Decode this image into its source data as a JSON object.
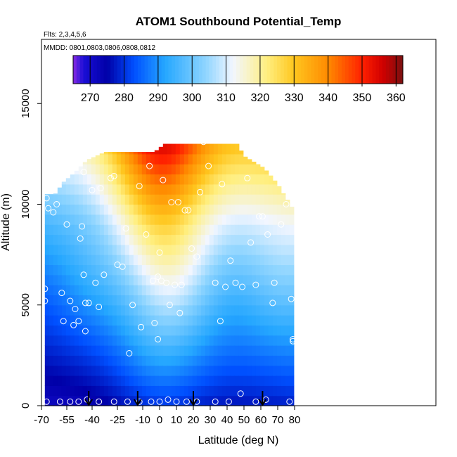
{
  "chart_data": {
    "type": "heatmap",
    "title": "ATOM1 Southbound Potential_Temp",
    "annotations": [
      "Flts: 2,3,4,5,6",
      "MMDD: 0801,0803,0806,0808,0812"
    ],
    "xlabel": "Latitude (deg N)",
    "ylabel": "Altitude (m)",
    "xlim": [
      -70,
      80
    ],
    "ylim": [
      0,
      17500
    ],
    "x_ticks": [
      -70,
      -55,
      -40,
      -25,
      -10,
      0,
      10,
      20,
      30,
      40,
      50,
      60,
      70,
      80
    ],
    "y_ticks": [
      0,
      5000,
      10000,
      15000
    ],
    "colorbar": {
      "placement": "top",
      "range": [
        265,
        362
      ],
      "ticks": [
        270,
        280,
        290,
        300,
        310,
        320,
        330,
        340,
        350,
        360
      ],
      "stops": [
        {
          "value": 265,
          "color": "#8a2be2"
        },
        {
          "value": 268,
          "color": "#1a0ed6"
        },
        {
          "value": 275,
          "color": "#0000a8"
        },
        {
          "value": 283,
          "color": "#0050ff"
        },
        {
          "value": 292,
          "color": "#25a7ff"
        },
        {
          "value": 304,
          "color": "#8fd5ff"
        },
        {
          "value": 312,
          "color": "#f2f6ff"
        },
        {
          "value": 322,
          "color": "#ffef80"
        },
        {
          "value": 330,
          "color": "#ffc61e"
        },
        {
          "value": 340,
          "color": "#ff8a00"
        },
        {
          "value": 350,
          "color": "#ff2000"
        },
        {
          "value": 356,
          "color": "#d10000"
        },
        {
          "value": 362,
          "color": "#7a1010"
        }
      ]
    },
    "profile_column_arrows_lat": [
      -42,
      -13,
      20,
      61
    ],
    "observation_points": [
      [
        -68,
        5800
      ],
      [
        -68,
        5200
      ],
      [
        -67,
        10300
      ],
      [
        -66,
        9800
      ],
      [
        -63,
        9600
      ],
      [
        -61,
        10000
      ],
      [
        -58,
        5600
      ],
      [
        -57,
        4200
      ],
      [
        -55,
        9000
      ],
      [
        -53,
        5200
      ],
      [
        -51,
        4000
      ],
      [
        -50,
        4800
      ],
      [
        -48,
        4200
      ],
      [
        -47,
        8300
      ],
      [
        -46,
        8900
      ],
      [
        -45,
        11600
      ],
      [
        -45,
        6500
      ],
      [
        -44,
        5100
      ],
      [
        -44,
        3700
      ],
      [
        -42,
        5100
      ],
      [
        -40,
        10700
      ],
      [
        -38,
        6100
      ],
      [
        -36,
        4900
      ],
      [
        -35,
        10800
      ],
      [
        -33,
        6500
      ],
      [
        -29,
        11300
      ],
      [
        -27,
        11400
      ],
      [
        -25,
        7000
      ],
      [
        -22,
        6900
      ],
      [
        -20,
        8800
      ],
      [
        -18,
        2600
      ],
      [
        -16,
        5000
      ],
      [
        -12,
        10900
      ],
      [
        -11,
        3900
      ],
      [
        -8,
        8500
      ],
      [
        -6,
        11900
      ],
      [
        -4,
        6200
      ],
      [
        -3,
        4100
      ],
      [
        -1,
        3300
      ],
      [
        -1,
        6400
      ],
      [
        0,
        7600
      ],
      [
        1,
        6200
      ],
      [
        2,
        11200
      ],
      [
        4,
        6100
      ],
      [
        6,
        5000
      ],
      [
        7,
        10100
      ],
      [
        9,
        6000
      ],
      [
        11,
        10100
      ],
      [
        12,
        4600
      ],
      [
        13,
        6000
      ],
      [
        15,
        9700
      ],
      [
        17,
        9700
      ],
      [
        19,
        7800
      ],
      [
        22,
        7400
      ],
      [
        24,
        10600
      ],
      [
        26,
        13100
      ],
      [
        29,
        11900
      ],
      [
        33,
        6100
      ],
      [
        36,
        4200
      ],
      [
        37,
        11000
      ],
      [
        39,
        5900
      ],
      [
        42,
        7200
      ],
      [
        45,
        6100
      ],
      [
        49,
        5900
      ],
      [
        52,
        11300
      ],
      [
        54,
        8100
      ],
      [
        57,
        6000
      ],
      [
        59,
        9400
      ],
      [
        61,
        9400
      ],
      [
        64,
        8500
      ],
      [
        67,
        5100
      ],
      [
        68,
        6100
      ],
      [
        69,
        11800
      ],
      [
        72,
        9000
      ],
      [
        75,
        10000
      ],
      [
        78,
        5300
      ],
      [
        79,
        3300
      ],
      [
        79,
        3200
      ],
      [
        -67,
        200
      ],
      [
        -59,
        200
      ],
      [
        -53,
        200
      ],
      [
        -48,
        200
      ],
      [
        -43,
        300
      ],
      [
        -36,
        200
      ],
      [
        -27,
        200
      ],
      [
        -19,
        200
      ],
      [
        -12,
        200
      ],
      [
        -5,
        200
      ],
      [
        0,
        200
      ],
      [
        5,
        300
      ],
      [
        10,
        200
      ],
      [
        16,
        200
      ],
      [
        22,
        200
      ],
      [
        33,
        200
      ],
      [
        41,
        200
      ],
      [
        48,
        600
      ],
      [
        57,
        200
      ],
      [
        63,
        300
      ],
      [
        77,
        200
      ]
    ]
  }
}
